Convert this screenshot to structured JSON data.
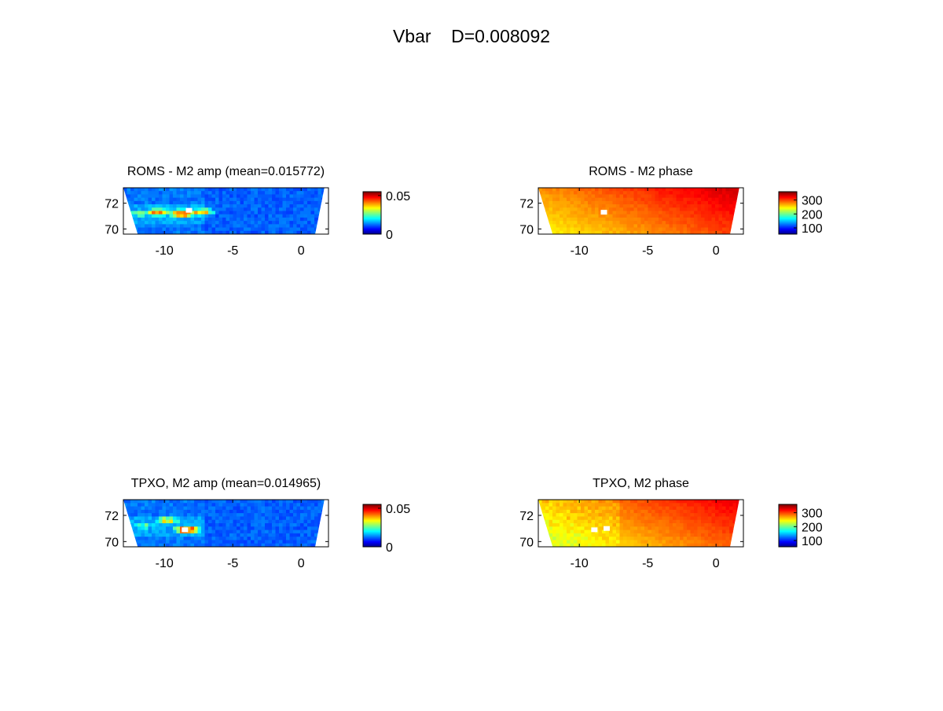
{
  "figure": {
    "title": "Vbar    D=0.008092"
  },
  "chart_data": [
    {
      "type": "heatmap",
      "title": "ROMS - M2 amp (mean=0.015772)",
      "xlabel": "",
      "ylabel": "",
      "xlim": [
        -13,
        2
      ],
      "ylim": [
        69.6,
        73.2
      ],
      "xticks": [
        -10,
        -5,
        0
      ],
      "yticks": [
        70,
        72
      ],
      "colormap": "jet",
      "clim": [
        0,
        0.055
      ],
      "colorbar_ticks": [
        0,
        0.05
      ],
      "colorbar_tick_labels": [
        "0",
        "0.05"
      ],
      "field": "amp",
      "mean": 0.015772,
      "hotspots": [
        {
          "lon": -8.7,
          "lat": 71.2,
          "value": 0.055
        },
        {
          "lon": -10.5,
          "lat": 71.3,
          "value": 0.045
        },
        {
          "lon": -7.3,
          "lat": 71.3,
          "value": 0.042
        },
        {
          "lon": -11.8,
          "lat": 71.2,
          "value": 0.03
        }
      ],
      "missing": [
        {
          "lon": -8.2,
          "lat": 71.45
        }
      ]
    },
    {
      "type": "heatmap",
      "title": "ROMS - M2 phase",
      "xlabel": "",
      "ylabel": "",
      "xlim": [
        -13,
        2
      ],
      "ylim": [
        69.6,
        73.2
      ],
      "xticks": [
        -10,
        -5,
        0
      ],
      "yticks": [
        70,
        72
      ],
      "colormap": "jet",
      "clim": [
        55,
        360
      ],
      "colorbar_ticks": [
        100,
        200,
        300
      ],
      "colorbar_tick_labels": [
        "100",
        "200",
        "300"
      ],
      "field": "phase",
      "range_estimate": [
        245,
        340
      ],
      "missing": [
        {
          "lon": -8.2,
          "lat": 71.3
        }
      ]
    },
    {
      "type": "heatmap",
      "title": "TPXO, M2 amp (mean=0.014965)",
      "xlabel": "",
      "ylabel": "",
      "xlim": [
        -13,
        2
      ],
      "ylim": [
        69.6,
        73.2
      ],
      "xticks": [
        -10,
        -5,
        0
      ],
      "yticks": [
        70,
        72
      ],
      "colormap": "jet",
      "clim": [
        0,
        0.055
      ],
      "colorbar_ticks": [
        0,
        0.05
      ],
      "colorbar_tick_labels": [
        "0",
        "0.05"
      ],
      "field": "amp",
      "mean": 0.014965,
      "hotspots": [
        {
          "lon": -8.3,
          "lat": 70.9,
          "value": 0.055
        },
        {
          "lon": -9.8,
          "lat": 71.6,
          "value": 0.04
        },
        {
          "lon": -11.5,
          "lat": 71.2,
          "value": 0.028
        }
      ],
      "missing": [
        {
          "lon": -8.5,
          "lat": 70.9
        }
      ]
    },
    {
      "type": "heatmap",
      "title": "TPXO, M2 phase",
      "xlabel": "",
      "ylabel": "",
      "xlim": [
        -13,
        2
      ],
      "ylim": [
        69.6,
        73.2
      ],
      "xticks": [
        -10,
        -5,
        0
      ],
      "yticks": [
        70,
        72
      ],
      "colormap": "jet",
      "clim": [
        55,
        360
      ],
      "colorbar_ticks": [
        100,
        200,
        300
      ],
      "colorbar_tick_labels": [
        "100",
        "200",
        "300"
      ],
      "field": "phase",
      "range_estimate": [
        235,
        330
      ],
      "missing": [
        {
          "lon": -8.9,
          "lat": 70.9
        },
        {
          "lon": -8.0,
          "lat": 71.0
        }
      ]
    }
  ]
}
